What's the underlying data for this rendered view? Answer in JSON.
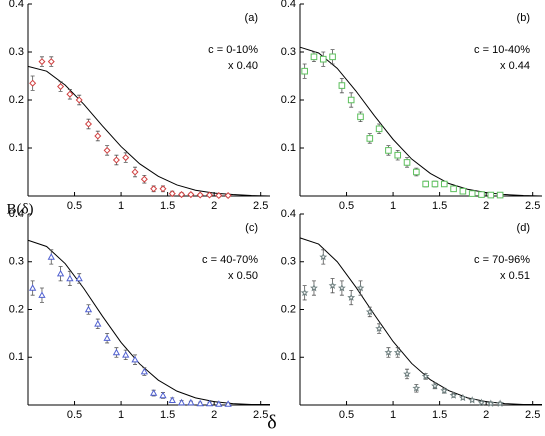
{
  "axis_labels": {
    "y": "B(δ)",
    "x": "δ"
  },
  "chart_data": [
    {
      "type": "scatter",
      "panel": "(a)",
      "annotation": [
        "c = 0-10%",
        "x 0.40"
      ],
      "color": "#d04040",
      "marker": "diamond",
      "x": [
        0.05,
        0.15,
        0.25,
        0.35,
        0.45,
        0.55,
        0.65,
        0.75,
        0.85,
        0.95,
        1.05,
        1.15,
        1.25,
        1.35,
        1.45,
        1.55,
        1.65,
        1.75,
        1.85,
        1.95,
        2.05,
        2.15
      ],
      "values": [
        0.235,
        0.28,
        0.28,
        0.228,
        0.212,
        0.2,
        0.15,
        0.125,
        0.095,
        0.075,
        0.08,
        0.05,
        0.035,
        0.015,
        0.015,
        0.005,
        0.003,
        0.003,
        0.002,
        0.002,
        0.001,
        0.001
      ],
      "errors": [
        0.015,
        0.01,
        0.01,
        0.01,
        0.01,
        0.01,
        0.01,
        0.01,
        0.01,
        0.01,
        0.01,
        0.01,
        0.008,
        0.006,
        0.006,
        0.005,
        0.004,
        0.003,
        0.003,
        0.003,
        0.003,
        0.003
      ],
      "curve": {
        "color": "#000000",
        "x": [
          0,
          0.2,
          0.4,
          0.6,
          0.8,
          1.0,
          1.2,
          1.4,
          1.6,
          1.8,
          2.0,
          2.2,
          2.4,
          2.6
        ],
        "values": [
          0.27,
          0.26,
          0.231,
          0.191,
          0.146,
          0.103,
          0.067,
          0.041,
          0.023,
          0.012,
          0.006,
          0.003,
          0.001,
          0.0
        ]
      },
      "xlim": [
        0,
        2.6
      ],
      "ylim": [
        0,
        0.4
      ],
      "xticks": [
        0.5,
        1,
        1.5,
        2,
        2.5
      ],
      "yticks": [
        0.1,
        0.2,
        0.3,
        0.4
      ]
    },
    {
      "type": "scatter",
      "panel": "(b)",
      "annotation": [
        "c = 10-40%",
        "x 0.44"
      ],
      "color": "#5cbf5c",
      "marker": "square",
      "x": [
        0.05,
        0.15,
        0.25,
        0.35,
        0.45,
        0.55,
        0.65,
        0.75,
        0.85,
        0.95,
        1.05,
        1.15,
        1.25,
        1.35,
        1.45,
        1.55,
        1.65,
        1.75,
        1.85,
        1.95,
        2.05,
        2.15
      ],
      "values": [
        0.26,
        0.29,
        0.285,
        0.29,
        0.23,
        0.2,
        0.165,
        0.12,
        0.14,
        0.095,
        0.085,
        0.07,
        0.05,
        0.025,
        0.025,
        0.025,
        0.015,
        0.01,
        0.005,
        0.003,
        0.002,
        0.002
      ],
      "errors": [
        0.015,
        0.01,
        0.015,
        0.015,
        0.015,
        0.015,
        0.01,
        0.01,
        0.01,
        0.01,
        0.01,
        0.01,
        0.008,
        0.006,
        0.006,
        0.005,
        0.004,
        0.003,
        0.003,
        0.003,
        0.003,
        0.003
      ],
      "curve": {
        "color": "#000000",
        "x": [
          0,
          0.2,
          0.4,
          0.6,
          0.8,
          1.0,
          1.2,
          1.4,
          1.6,
          1.8,
          2.0,
          2.2,
          2.4,
          2.6
        ],
        "values": [
          0.31,
          0.298,
          0.266,
          0.219,
          0.167,
          0.118,
          0.077,
          0.047,
          0.026,
          0.014,
          0.007,
          0.003,
          0.001,
          0.0
        ]
      },
      "xlim": [
        0,
        2.6
      ],
      "ylim": [
        0,
        0.4
      ],
      "xticks": [
        0.5,
        1,
        1.5,
        2,
        2.5
      ],
      "yticks": [
        0.1,
        0.2,
        0.3,
        0.4
      ]
    },
    {
      "type": "scatter",
      "panel": "(c)",
      "annotation": [
        "c = 40-70%",
        "x 0.50"
      ],
      "color": "#5060d0",
      "marker": "triangle",
      "x": [
        0.05,
        0.15,
        0.25,
        0.35,
        0.45,
        0.55,
        0.65,
        0.75,
        0.85,
        0.95,
        1.05,
        1.15,
        1.25,
        1.35,
        1.45,
        1.55,
        1.65,
        1.75,
        1.85,
        1.95,
        2.05,
        2.15
      ],
      "values": [
        0.245,
        0.23,
        0.31,
        0.275,
        0.265,
        0.265,
        0.2,
        0.17,
        0.14,
        0.11,
        0.105,
        0.095,
        0.07,
        0.025,
        0.02,
        0.01,
        0.005,
        0.005,
        0.003,
        0.003,
        0.002,
        0.002
      ],
      "errors": [
        0.015,
        0.015,
        0.015,
        0.015,
        0.015,
        0.01,
        0.01,
        0.01,
        0.01,
        0.01,
        0.01,
        0.01,
        0.008,
        0.006,
        0.006,
        0.005,
        0.004,
        0.003,
        0.003,
        0.003,
        0.003,
        0.003
      ],
      "curve": {
        "color": "#000000",
        "x": [
          0,
          0.2,
          0.4,
          0.6,
          0.8,
          1.0,
          1.2,
          1.4,
          1.6,
          1.8,
          2.0,
          2.2,
          2.4,
          2.6
        ],
        "values": [
          0.345,
          0.332,
          0.296,
          0.244,
          0.186,
          0.131,
          0.086,
          0.052,
          0.029,
          0.015,
          0.007,
          0.003,
          0.001,
          0.001
        ]
      },
      "xlim": [
        0,
        2.6
      ],
      "ylim": [
        0,
        0.4
      ],
      "xticks": [
        0.5,
        1,
        1.5,
        2,
        2.5
      ],
      "yticks": [
        0.1,
        0.2,
        0.3,
        0.4
      ]
    },
    {
      "type": "scatter",
      "panel": "(d)",
      "annotation": [
        "c = 70-96%",
        "x 0.51"
      ],
      "color": "#6f8080",
      "marker": "star",
      "x": [
        0.05,
        0.15,
        0.25,
        0.35,
        0.45,
        0.55,
        0.65,
        0.75,
        0.85,
        0.95,
        1.05,
        1.15,
        1.25,
        1.35,
        1.45,
        1.55,
        1.65,
        1.75,
        1.85,
        1.95,
        2.05,
        2.15
      ],
      "values": [
        0.235,
        0.245,
        0.31,
        0.25,
        0.245,
        0.225,
        0.245,
        0.195,
        0.16,
        0.11,
        0.11,
        0.065,
        0.035,
        0.06,
        0.04,
        0.03,
        0.02,
        0.015,
        0.01,
        0.005,
        0.003,
        0.003
      ],
      "errors": [
        0.015,
        0.015,
        0.015,
        0.015,
        0.015,
        0.015,
        0.015,
        0.01,
        0.01,
        0.01,
        0.01,
        0.01,
        0.008,
        0.006,
        0.006,
        0.005,
        0.004,
        0.003,
        0.003,
        0.003,
        0.003,
        0.003
      ],
      "curve": {
        "color": "#000000",
        "x": [
          0,
          0.2,
          0.4,
          0.6,
          0.8,
          1.0,
          1.2,
          1.4,
          1.6,
          1.8,
          2.0,
          2.2,
          2.4,
          2.6
        ],
        "values": [
          0.35,
          0.337,
          0.3,
          0.247,
          0.189,
          0.133,
          0.087,
          0.053,
          0.03,
          0.015,
          0.007,
          0.003,
          0.001,
          0.001
        ]
      },
      "xlim": [
        0,
        2.6
      ],
      "ylim": [
        0,
        0.4
      ],
      "xticks": [
        0.5,
        1,
        1.5,
        2,
        2.5
      ],
      "yticks": [
        0.1,
        0.2,
        0.3,
        0.4
      ]
    }
  ]
}
